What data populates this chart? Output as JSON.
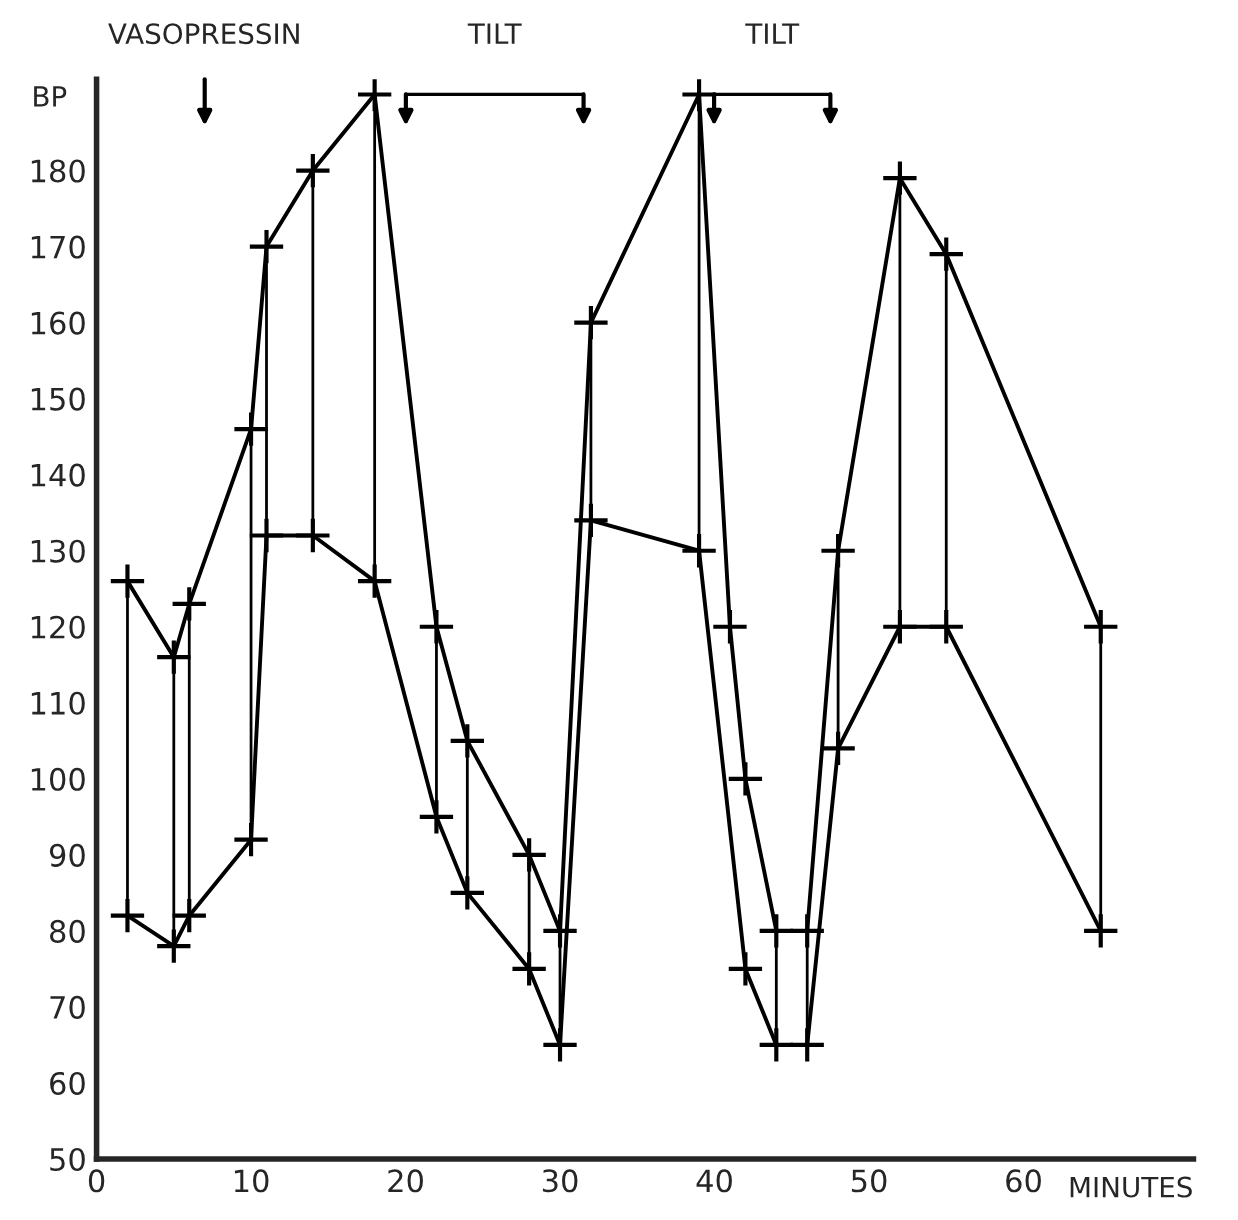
{
  "chart_data": {
    "type": "line",
    "xlabel": "MINUTES",
    "ylabel": "BP",
    "series": [
      {
        "color": "#000000",
        "x": [
          2,
          5,
          6,
          10,
          11,
          14,
          18,
          22,
          24,
          28,
          30,
          32,
          39,
          41,
          42,
          44,
          46,
          48,
          52,
          55,
          65
        ],
        "values": [
          126,
          116,
          123,
          146,
          170,
          180,
          190,
          120,
          105,
          90,
          80,
          160,
          190,
          120,
          100,
          80,
          80,
          130,
          179,
          169,
          120
        ],
        "errors": [
          [
            82,
            126
          ],
          [
            78,
            116
          ],
          [
            82,
            123
          ],
          [
            92,
            146
          ],
          [
            132,
            170
          ],
          [
            132,
            180
          ],
          [
            126,
            190
          ],
          [
            95,
            120
          ],
          [
            85,
            105
          ],
          [
            75,
            90
          ],
          [
            65,
            80
          ],
          [
            134,
            160
          ],
          [
            130,
            190
          ],
          null,
          null,
          [
            65,
            80
          ],
          [
            65,
            80
          ],
          [
            104,
            130
          ],
          [
            120,
            179
          ],
          [
            120,
            169
          ],
          [
            80,
            120
          ]
        ]
      },
      {
        "color": "#000000",
        "x": [
          2,
          5,
          6,
          10,
          11,
          14,
          18,
          22,
          24,
          28,
          30,
          32,
          39,
          42,
          44,
          46,
          48,
          52,
          55,
          65
        ],
        "values": [
          82,
          78,
          82,
          92,
          132,
          132,
          126,
          95,
          85,
          75,
          65,
          134,
          130,
          75,
          65,
          65,
          104,
          120,
          120,
          80
        ]
      }
    ],
    "annotations": [
      "VASOPRESSIN",
      "TILT",
      "TILT"
    ],
    "xlim": [
      0,
      71
    ],
    "ylim": [
      50,
      192
    ],
    "xticks": [
      0,
      10,
      20,
      30,
      40,
      50,
      60
    ],
    "yticks": [
      50,
      60,
      70,
      80,
      90,
      100,
      110,
      120,
      130,
      140,
      150,
      160,
      170,
      180
    ],
    "marker": "cross",
    "line_style": "solid",
    "grid": false,
    "legend": false
  }
}
